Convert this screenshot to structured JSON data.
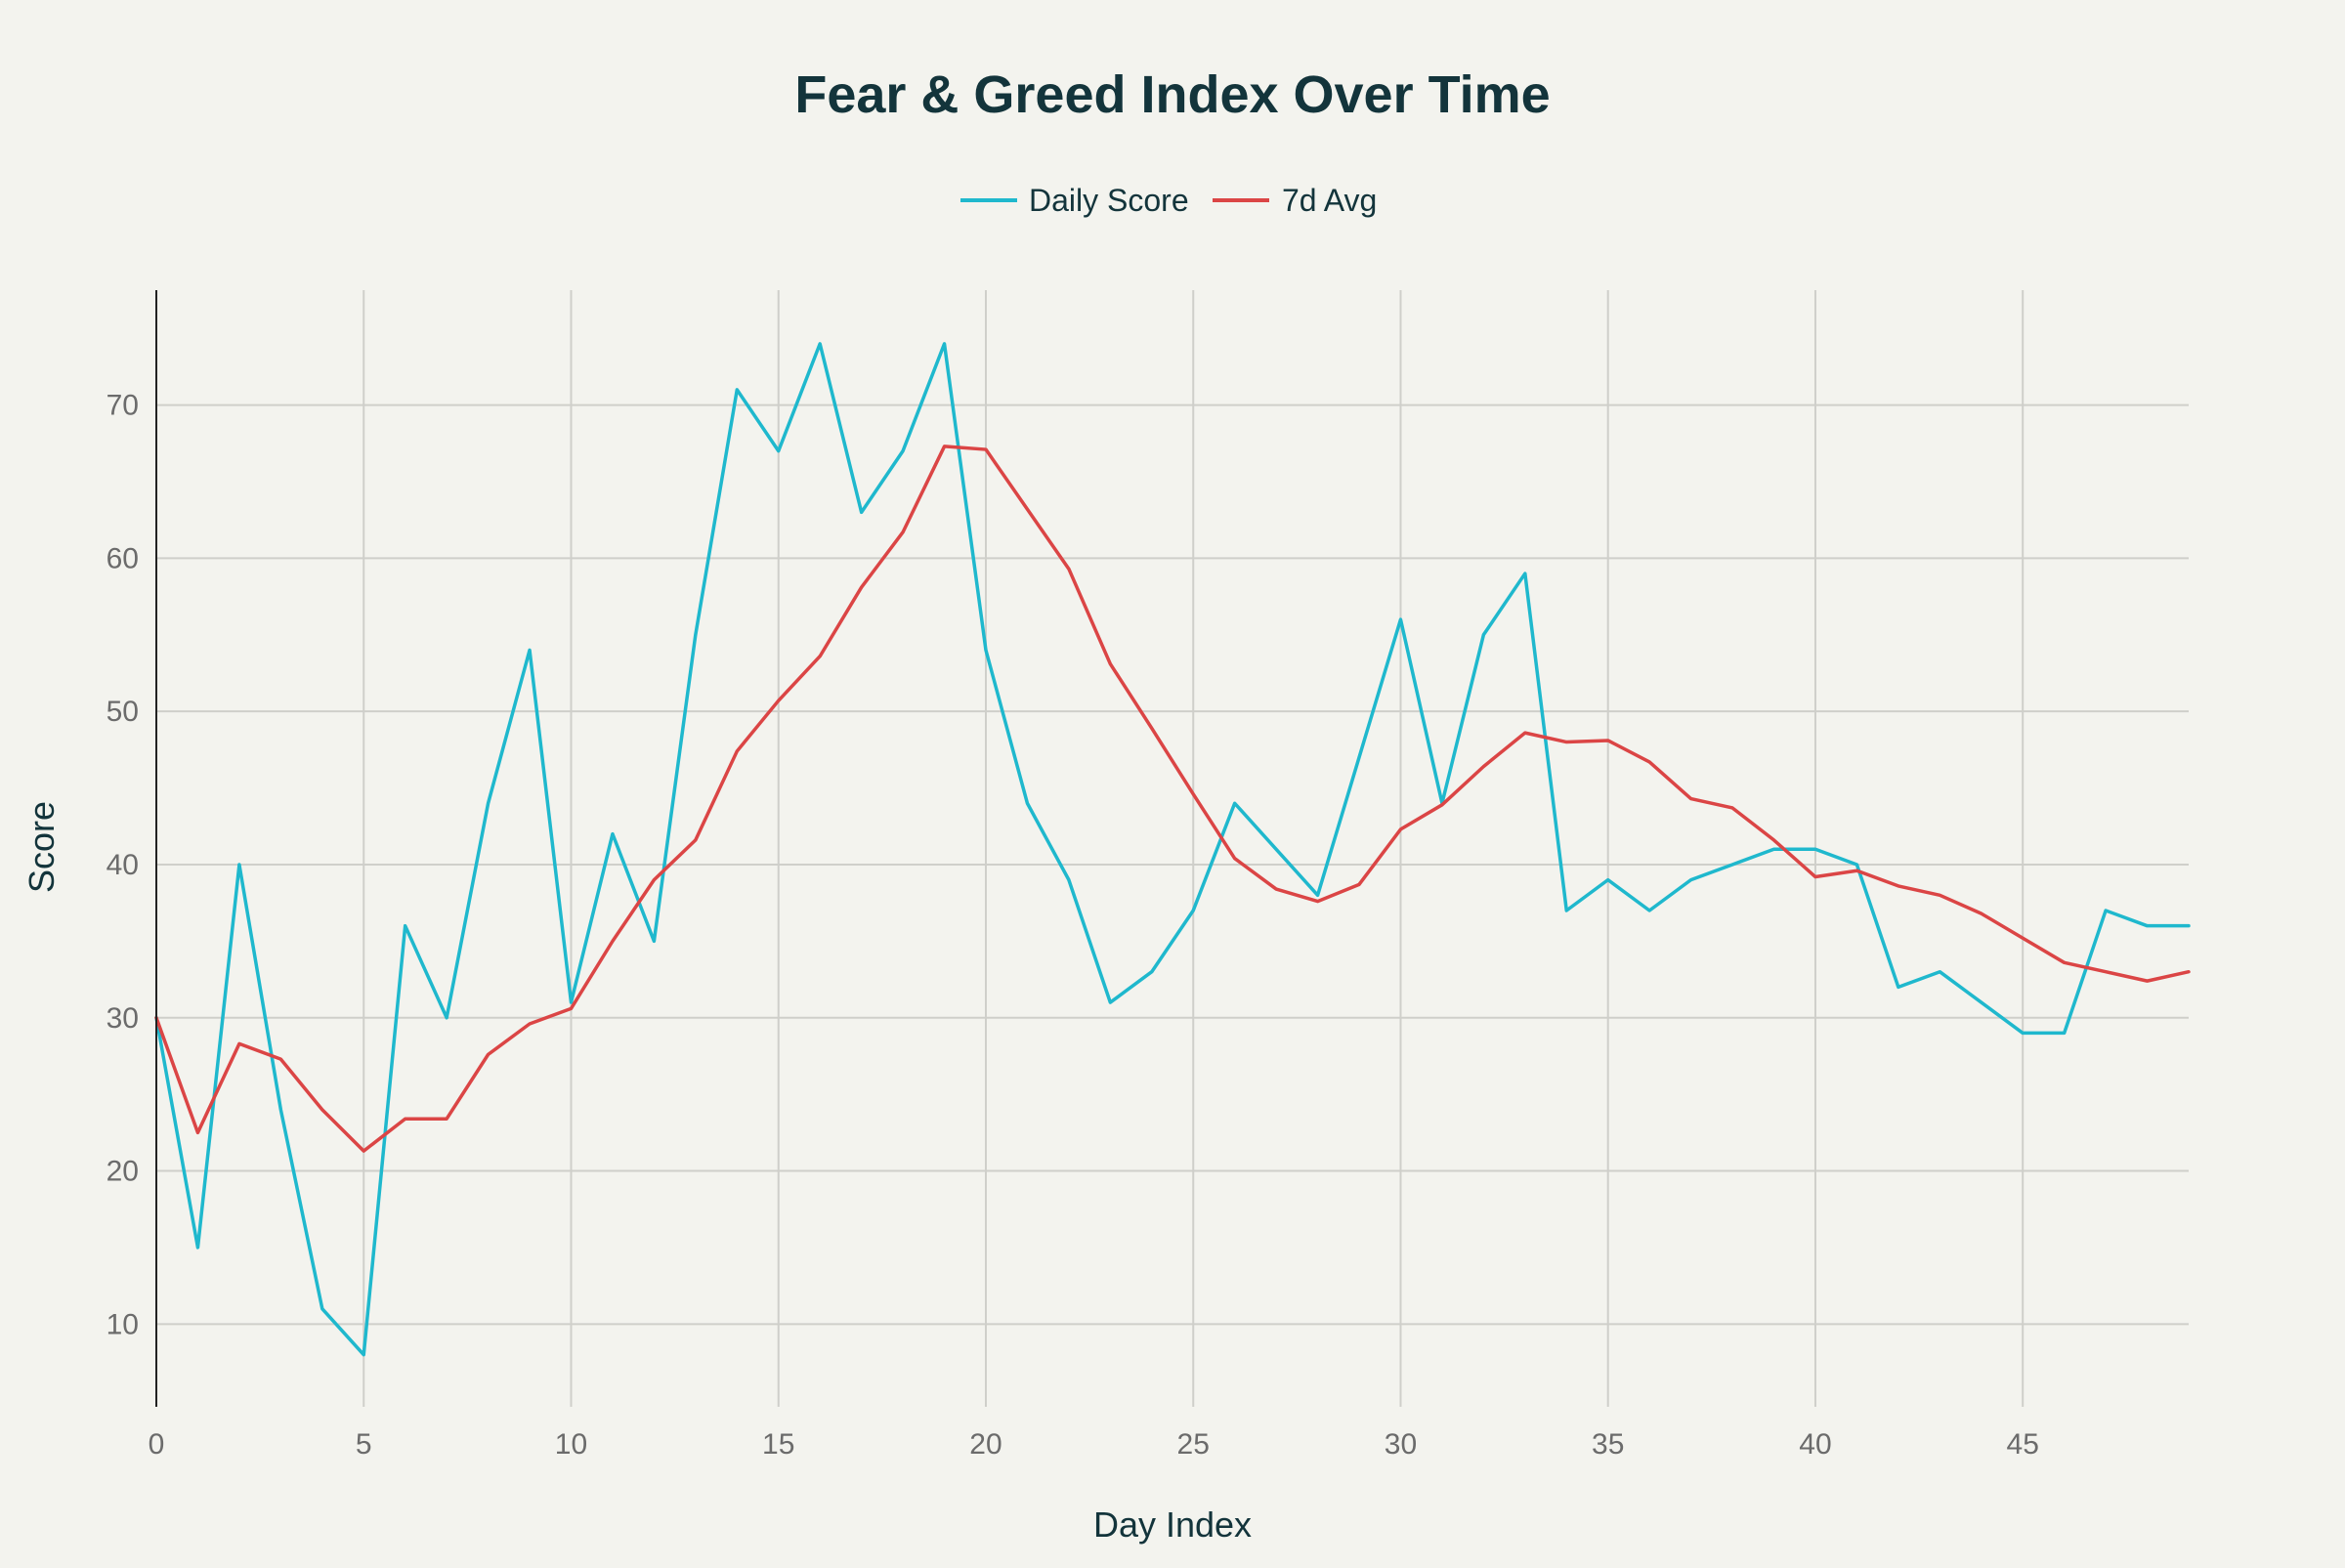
{
  "chart_data": {
    "type": "line",
    "title": "Fear & Greed Index Over Time",
    "xlabel": "Day Index",
    "ylabel": "Score",
    "xlim": [
      0,
      49
    ],
    "ylim": [
      4.6,
      77.5
    ],
    "x_ticks": [
      0,
      5,
      10,
      15,
      20,
      25,
      30,
      35,
      40,
      45
    ],
    "y_ticks": [
      10,
      20,
      30,
      40,
      50,
      60,
      70
    ],
    "grid": true,
    "legend_position": "top-center",
    "x": [
      0,
      1,
      2,
      3,
      4,
      5,
      6,
      7,
      8,
      9,
      10,
      11,
      12,
      13,
      14,
      15,
      16,
      17,
      18,
      19,
      20,
      21,
      22,
      23,
      24,
      25,
      26,
      27,
      28,
      29,
      30,
      31,
      32,
      33,
      34,
      35,
      36,
      37,
      38,
      39,
      40,
      41,
      42,
      43,
      44,
      45,
      46,
      47,
      48,
      49
    ],
    "series": [
      {
        "name": "Daily Score",
        "color": "#1fb8cd",
        "values": [
          30,
          15,
          40,
          24,
          11,
          8,
          36,
          30,
          44,
          54,
          31,
          42,
          35,
          55,
          71,
          67,
          74,
          63,
          67,
          74,
          54,
          44,
          39,
          31,
          33,
          37,
          44,
          41,
          38,
          47,
          56,
          44,
          55,
          59,
          37,
          39,
          37,
          39,
          40,
          41,
          41,
          40,
          32,
          33,
          31,
          29,
          29,
          37,
          36,
          36
        ]
      },
      {
        "name": "7d Avg",
        "color": "#db4545",
        "values": [
          30,
          22.5,
          28.3,
          27.3,
          24,
          21.3,
          23.4,
          23.4,
          27.6,
          29.6,
          30.6,
          35,
          39,
          41.6,
          47.4,
          50.7,
          53.6,
          58.1,
          61.7,
          67.3,
          67.1,
          63.2,
          59.3,
          53.1,
          48.9,
          44.6,
          40.4,
          38.4,
          37.6,
          38.7,
          42.3,
          43.9,
          46.4,
          48.6,
          48,
          48.1,
          46.7,
          44.3,
          43.7,
          41.6,
          39.2,
          39.6,
          38.6,
          38,
          36.8,
          35.2,
          33.6,
          33,
          32.4,
          33
        ]
      }
    ]
  }
}
